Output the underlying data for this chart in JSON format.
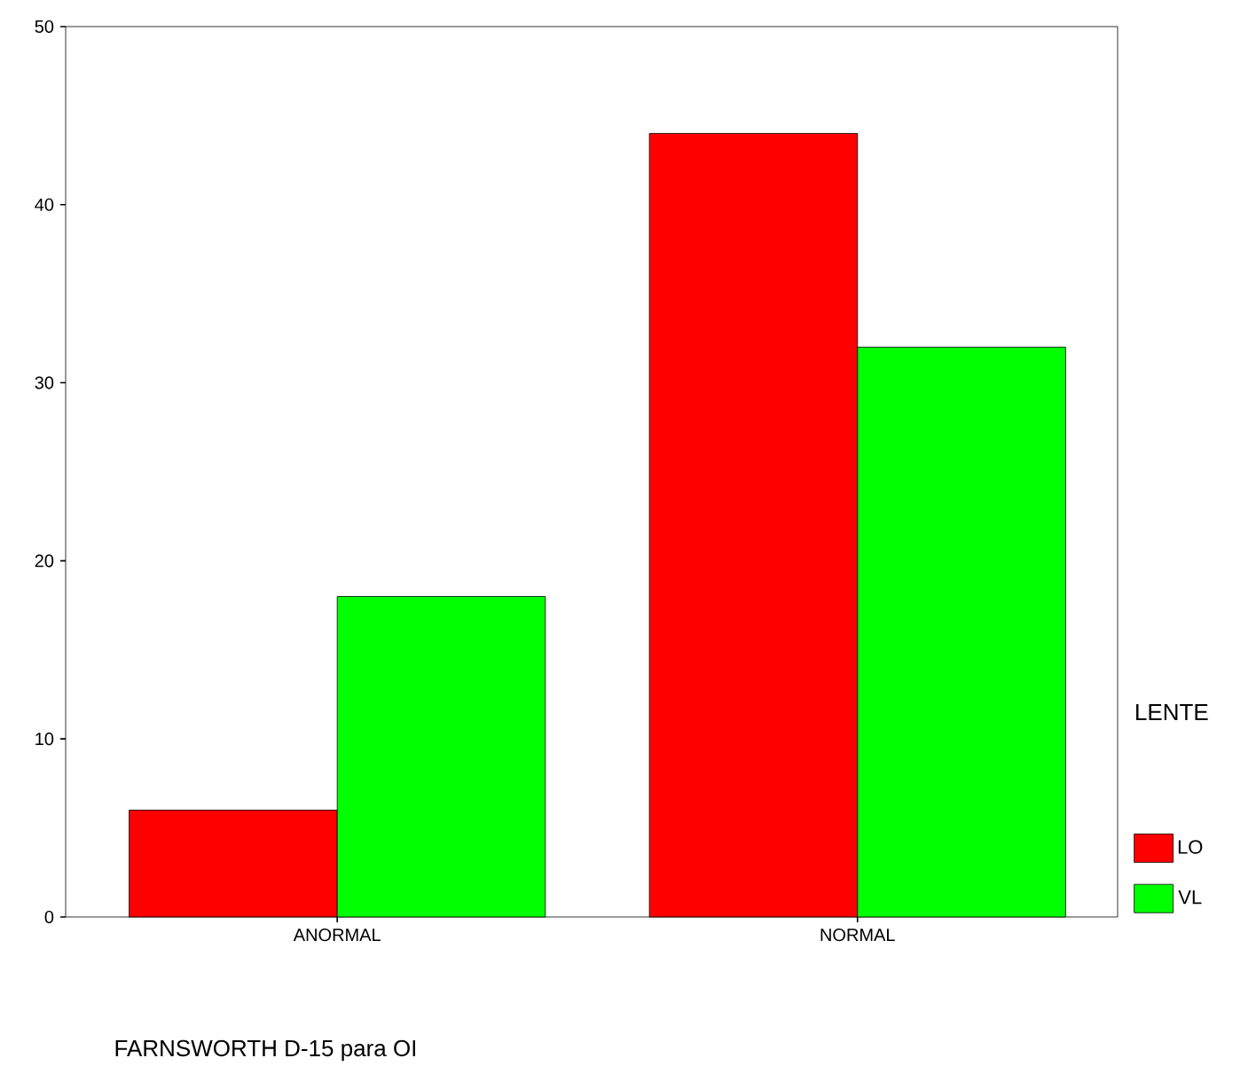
{
  "chart_data": {
    "type": "bar",
    "xlabel": "FARNSWORTH D-15 para OI",
    "legend_title": "LENTE",
    "categories": [
      "ANORMAL",
      "NORMAL"
    ],
    "series": [
      {
        "name": "LO",
        "color": "#ff0000",
        "values": [
          6,
          44
        ]
      },
      {
        "name": "VL",
        "color": "#00ff00",
        "values": [
          18,
          32
        ]
      }
    ],
    "ylim": [
      0,
      50
    ],
    "yticks": [
      0,
      10,
      20,
      30,
      40,
      50
    ],
    "grid": false,
    "legend": "right"
  }
}
